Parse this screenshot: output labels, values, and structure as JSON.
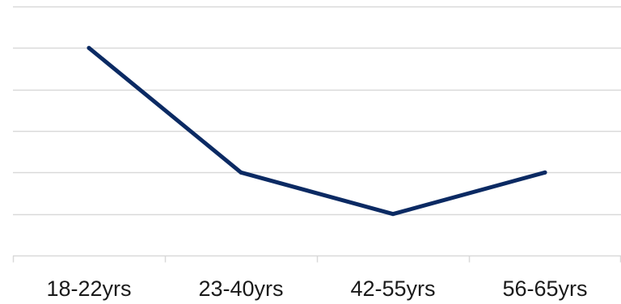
{
  "chart_data": {
    "type": "line",
    "categories": [
      "18-22yrs",
      "23-40yrs",
      "42-55yrs",
      "56-65yrs"
    ],
    "values": [
      5,
      2,
      1,
      2
    ],
    "ylim": [
      0,
      6
    ],
    "grid": true,
    "legend": "none",
    "title": "",
    "xlabel": "",
    "ylabel": ""
  },
  "colors": {
    "line": "#0b2a63",
    "grid": "#d9d9d9",
    "axis": "#d9d9d9",
    "text": "#1a1a1a"
  }
}
